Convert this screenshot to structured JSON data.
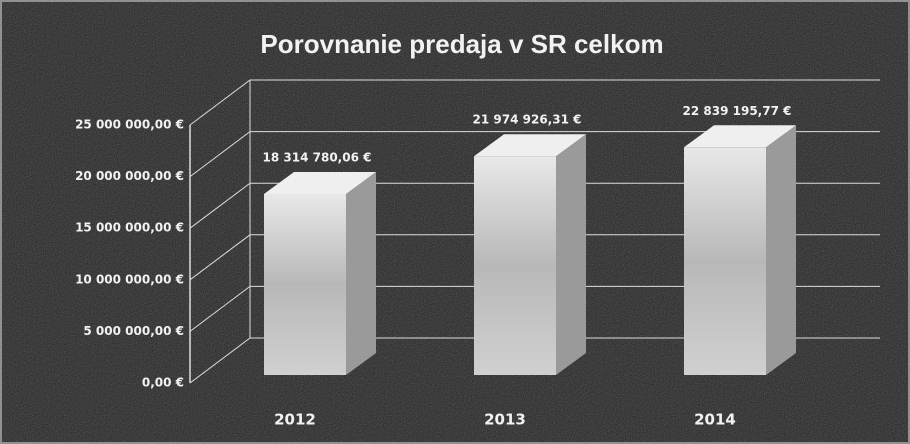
{
  "chart_data": {
    "type": "bar3d",
    "title": "Porovnanie predaja v SR celkom",
    "categories": [
      "2012",
      "2013",
      "2014"
    ],
    "values": [
      18314780.06,
      21974926.31,
      22839195.77
    ],
    "value_labels": [
      "18 314 780,06 €",
      "21 974 926,31 €",
      "22 839 195,77 €"
    ],
    "color": "#d9d9d9",
    "ylim": [
      0,
      25000000
    ],
    "yticks": [
      {
        "value": 0,
        "label": "0,00 €"
      },
      {
        "value": 5000000,
        "label": "5 000 000,00 €"
      },
      {
        "value": 10000000,
        "label": "10 000 000,00 €"
      },
      {
        "value": 15000000,
        "label": "15 000 000,00 €"
      },
      {
        "value": 20000000,
        "label": "20 000 000,00 €"
      },
      {
        "value": 25000000,
        "label": "25 000 000,00 €"
      }
    ],
    "grid": true
  }
}
